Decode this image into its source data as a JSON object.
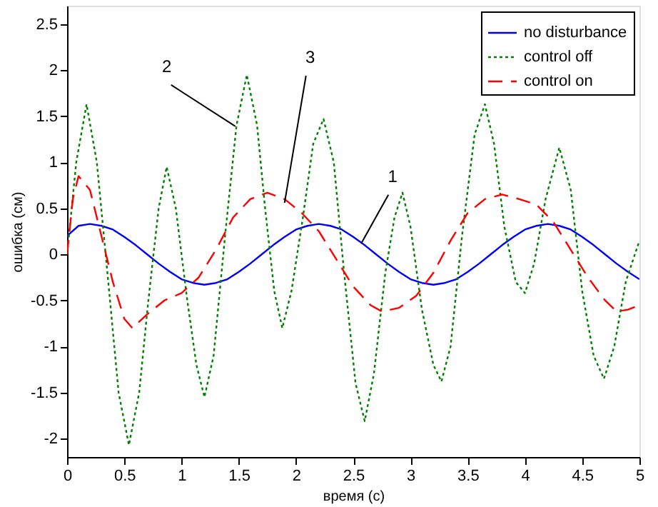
{
  "chart_data": {
    "type": "line",
    "xlabel": "время (с)",
    "ylabel": "ошибка (см)",
    "xlim": [
      0,
      5
    ],
    "xticks": [
      0,
      0.5,
      1,
      1.5,
      2,
      2.5,
      3,
      3.5,
      4,
      4.5,
      5
    ],
    "ylim": [
      -2.2,
      2.7
    ],
    "yticks": [
      -2,
      -1.5,
      -1,
      -0.5,
      0,
      0.5,
      1,
      1.5,
      2,
      2.5
    ],
    "grid": false,
    "legend": "top right",
    "marker": "none",
    "series": [
      {
        "name": "no disturbance",
        "color": "#0000ff",
        "line_style": "solid",
        "x": [
          0,
          0.1,
          0.2,
          0.3,
          0.4,
          0.5,
          0.6,
          0.7,
          0.8,
          0.9,
          1.0,
          1.1,
          1.2,
          1.3,
          1.4,
          1.5,
          1.6,
          1.7,
          1.8,
          1.9,
          2.0,
          2.1,
          2.2,
          2.3,
          2.4,
          2.5,
          2.6,
          2.7,
          2.8,
          2.9,
          3.0,
          3.1,
          3.2,
          3.3,
          3.4,
          3.5,
          3.6,
          3.7,
          3.8,
          3.9,
          4.0,
          4.1,
          4.2,
          4.3,
          4.4,
          4.5,
          4.6,
          4.7,
          4.8,
          4.9,
          5.0
        ],
        "values": [
          0.2,
          0.31,
          0.33,
          0.31,
          0.27,
          0.19,
          0.1,
          0,
          -0.1,
          -0.19,
          -0.27,
          -0.31,
          -0.33,
          -0.31,
          -0.27,
          -0.19,
          -0.1,
          0,
          0.1,
          0.19,
          0.27,
          0.31,
          0.33,
          0.31,
          0.27,
          0.19,
          0.1,
          0,
          -0.1,
          -0.19,
          -0.27,
          -0.31,
          -0.33,
          -0.31,
          -0.27,
          -0.19,
          -0.1,
          0,
          0.1,
          0.19,
          0.27,
          0.31,
          0.33,
          0.31,
          0.27,
          0.19,
          0.1,
          0,
          -0.1,
          -0.19,
          -0.27
        ]
      },
      {
        "name": "control off",
        "color": "#008000",
        "line_style": "dotted",
        "x": [
          0,
          0.08,
          0.17,
          0.26,
          0.36,
          0.45,
          0.54,
          0.63,
          0.71,
          0.8,
          0.87,
          0.95,
          1.05,
          1.13,
          1.2,
          1.28,
          1.38,
          1.48,
          1.57,
          1.66,
          1.73,
          1.81,
          1.88,
          1.96,
          2.06,
          2.15,
          2.24,
          2.33,
          2.42,
          2.52,
          2.6,
          2.68,
          2.78,
          2.86,
          2.93,
          3.0,
          3.1,
          3.2,
          3.27,
          3.35,
          3.45,
          3.56,
          3.65,
          3.73,
          3.82,
          3.92,
          4.0,
          4.08,
          4.18,
          4.3,
          4.4,
          4.5,
          4.6,
          4.69,
          4.78,
          4.88,
          5.0
        ],
        "values": [
          0,
          1.0,
          1.63,
          1.0,
          -0.3,
          -1.5,
          -2.07,
          -1.5,
          -0.5,
          0.5,
          0.95,
          0.5,
          -0.5,
          -1.2,
          -1.55,
          -1.1,
          0.2,
          1.4,
          1.95,
          1.4,
          0.5,
          -0.4,
          -0.8,
          -0.4,
          0.4,
          1.2,
          1.47,
          1.0,
          -0.2,
          -1.4,
          -1.81,
          -1.3,
          -0.2,
          0.4,
          0.67,
          0.3,
          -0.6,
          -1.2,
          -1.38,
          -1.0,
          0.2,
          1.3,
          1.63,
          1.2,
          0.3,
          -0.3,
          -0.42,
          -0.1,
          0.6,
          1.16,
          0.7,
          -0.4,
          -1.1,
          -1.35,
          -1.0,
          -0.3,
          0.15
        ]
      },
      {
        "name": "control on",
        "color": "#ff0000",
        "line_style": "dashed",
        "x": [
          0,
          0.05,
          0.1,
          0.2,
          0.3,
          0.4,
          0.5,
          0.57,
          0.7,
          0.85,
          1.0,
          1.15,
          1.3,
          1.45,
          1.6,
          1.75,
          1.9,
          2.05,
          2.2,
          2.35,
          2.5,
          2.65,
          2.75,
          2.9,
          3.05,
          3.2,
          3.35,
          3.5,
          3.65,
          3.8,
          3.95,
          4.1,
          4.25,
          4.4,
          4.55,
          4.7,
          4.8,
          4.9,
          5.0
        ],
        "values": [
          0,
          0.6,
          0.85,
          0.7,
          0.2,
          -0.3,
          -0.7,
          -0.8,
          -0.65,
          -0.5,
          -0.42,
          -0.25,
          0.05,
          0.4,
          0.6,
          0.67,
          0.6,
          0.45,
          0.25,
          -0.05,
          -0.35,
          -0.55,
          -0.62,
          -0.58,
          -0.45,
          -0.2,
          0.15,
          0.45,
          0.6,
          0.65,
          0.6,
          0.54,
          0.35,
          0.05,
          -0.25,
          -0.5,
          -0.62,
          -0.6,
          -0.55
        ]
      }
    ],
    "annotations": [
      {
        "text": "1",
        "x": 2.57,
        "y": 0.12
      },
      {
        "text": "2",
        "x": 1.47,
        "y": 1.39
      },
      {
        "text": "3",
        "x": 1.9,
        "y": 0.56
      }
    ]
  }
}
